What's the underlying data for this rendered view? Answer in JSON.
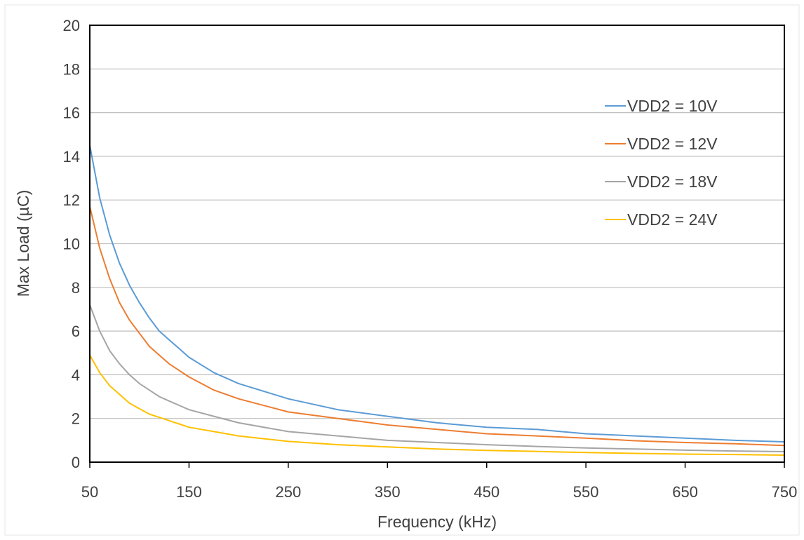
{
  "chart_data": {
    "type": "line",
    "xlabel": "Frequency (kHz)",
    "ylabel": "Max Load (µC)",
    "xlim": [
      50,
      750
    ],
    "ylim": [
      0,
      20
    ],
    "x_ticks": [
      50,
      150,
      250,
      350,
      450,
      550,
      650,
      750
    ],
    "y_ticks": [
      0,
      2,
      4,
      6,
      8,
      10,
      12,
      14,
      16,
      18,
      20
    ],
    "grid": "horizontal",
    "legend_position": "right, upper",
    "x": [
      50,
      60,
      70,
      80,
      90,
      100,
      110,
      120,
      130,
      140,
      150,
      175,
      200,
      250,
      300,
      350,
      400,
      450,
      500,
      550,
      600,
      650,
      700,
      750
    ],
    "series": [
      {
        "name": "VDD2 = 10V",
        "color": "#5B9BD5",
        "values": [
          14.5,
          12.1,
          10.4,
          9.1,
          8.1,
          7.3,
          6.6,
          6.0,
          5.6,
          5.2,
          4.8,
          4.1,
          3.6,
          2.9,
          2.4,
          2.1,
          1.8,
          1.6,
          1.5,
          1.3,
          1.2,
          1.1,
          1.0,
          0.93
        ]
      },
      {
        "name": "VDD2 = 12V",
        "color": "#ED7D31",
        "values": [
          11.7,
          9.8,
          8.4,
          7.3,
          6.5,
          5.9,
          5.3,
          4.9,
          4.5,
          4.2,
          3.9,
          3.3,
          2.9,
          2.3,
          2.0,
          1.7,
          1.5,
          1.3,
          1.2,
          1.1,
          0.98,
          0.9,
          0.84,
          0.76
        ]
      },
      {
        "name": "VDD2 = 18V",
        "color": "#A5A5A5",
        "values": [
          7.2,
          6.0,
          5.1,
          4.5,
          4.0,
          3.6,
          3.3,
          3.0,
          2.8,
          2.6,
          2.4,
          2.1,
          1.8,
          1.4,
          1.2,
          1.0,
          0.9,
          0.8,
          0.72,
          0.65,
          0.6,
          0.55,
          0.51,
          0.48
        ]
      },
      {
        "name": "VDD2 = 24V",
        "color": "#FFC000",
        "values": [
          4.9,
          4.1,
          3.5,
          3.1,
          2.7,
          2.45,
          2.2,
          2.05,
          1.9,
          1.75,
          1.6,
          1.4,
          1.2,
          0.95,
          0.8,
          0.7,
          0.6,
          0.54,
          0.49,
          0.44,
          0.4,
          0.37,
          0.35,
          0.32
        ]
      }
    ]
  }
}
